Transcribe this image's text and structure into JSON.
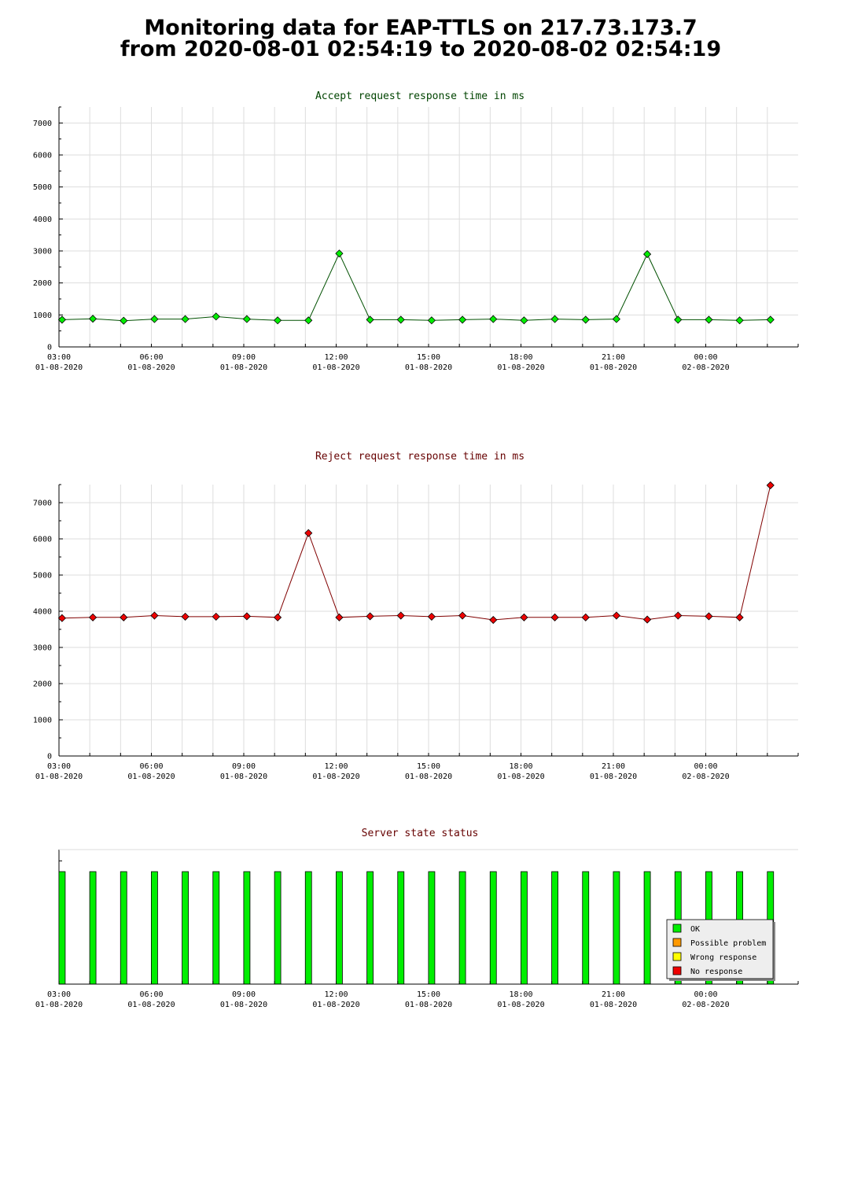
{
  "page": {
    "title_line1": "Monitoring data for EAP-TTLS on 217.73.173.7",
    "title_line2": "from 2020-08-01 02:54:19 to 2020-08-02 02:54:19"
  },
  "colors": {
    "accept_line": "#005000",
    "accept_marker": "#00ee00",
    "accept_title": "#004400",
    "reject_line": "#800000",
    "reject_marker": "#ee0000",
    "reject_title": "#660000",
    "status_title": "#660000",
    "ok": "#00ee00",
    "possible_problem": "#ff9900",
    "wrong_response": "#ffff00",
    "no_response": "#ee0000",
    "grid": "#dddddd"
  },
  "x_ticks": [
    {
      "time": "03:00",
      "date": "01-08-2020"
    },
    {
      "time": "06:00",
      "date": "01-08-2020"
    },
    {
      "time": "09:00",
      "date": "01-08-2020"
    },
    {
      "time": "12:00",
      "date": "01-08-2020"
    },
    {
      "time": "15:00",
      "date": "01-08-2020"
    },
    {
      "time": "18:00",
      "date": "01-08-2020"
    },
    {
      "time": "21:00",
      "date": "01-08-2020"
    },
    {
      "time": "00:00",
      "date": "02-08-2020"
    }
  ],
  "chart_data": [
    {
      "type": "line",
      "title": "Accept request response time in ms",
      "x_hours": [
        3.1,
        4.1,
        5.1,
        6.1,
        7.1,
        8.1,
        9.1,
        10.1,
        11.1,
        12.1,
        13.1,
        14.1,
        15.1,
        16.1,
        17.1,
        18.1,
        19.1,
        20.1,
        21.1,
        22.1,
        23.1,
        24.1,
        25.1,
        26.1
      ],
      "values": [
        850,
        880,
        820,
        870,
        870,
        950,
        870,
        830,
        830,
        2920,
        850,
        850,
        830,
        850,
        870,
        830,
        870,
        850,
        870,
        2900,
        850,
        850,
        830,
        850
      ],
      "ylim": [
        0,
        7500
      ],
      "yticks": [
        0,
        1000,
        2000,
        3000,
        4000,
        5000,
        6000,
        7000
      ],
      "grid": true
    },
    {
      "type": "line",
      "title": "Reject request response time in ms",
      "x_hours": [
        3.1,
        4.1,
        5.1,
        6.1,
        7.1,
        8.1,
        9.1,
        10.1,
        11.1,
        12.1,
        13.1,
        14.1,
        15.1,
        16.1,
        17.1,
        18.1,
        19.1,
        20.1,
        21.1,
        22.1,
        23.1,
        24.1,
        25.1,
        26.1
      ],
      "values": [
        3810,
        3830,
        3830,
        3880,
        3850,
        3850,
        3860,
        3830,
        6160,
        3830,
        3860,
        3880,
        3850,
        3880,
        3760,
        3830,
        3830,
        3830,
        3880,
        3770,
        3880,
        3860,
        3830,
        7480
      ],
      "ylim": [
        0,
        7500
      ],
      "yticks": [
        0,
        1000,
        2000,
        3000,
        4000,
        5000,
        6000,
        7000
      ],
      "grid": true
    },
    {
      "type": "bar",
      "title": "Server state status",
      "x_hours": [
        3.1,
        4.1,
        5.1,
        6.1,
        7.1,
        8.1,
        9.1,
        10.1,
        11.1,
        12.1,
        13.1,
        14.1,
        15.1,
        16.1,
        17.1,
        18.1,
        19.1,
        20.1,
        21.1,
        22.1,
        23.1,
        24.1,
        25.1,
        26.1
      ],
      "states": [
        "OK",
        "OK",
        "OK",
        "OK",
        "OK",
        "OK",
        "OK",
        "OK",
        "OK",
        "OK",
        "OK",
        "OK",
        "OK",
        "OK",
        "OK",
        "OK",
        "OK",
        "OK",
        "OK",
        "OK",
        "OK",
        "OK",
        "OK",
        "OK"
      ],
      "legend": [
        "OK",
        "Possible problem",
        "Wrong response",
        "No response"
      ],
      "legend_position": "bottom-right",
      "grid": false
    }
  ]
}
